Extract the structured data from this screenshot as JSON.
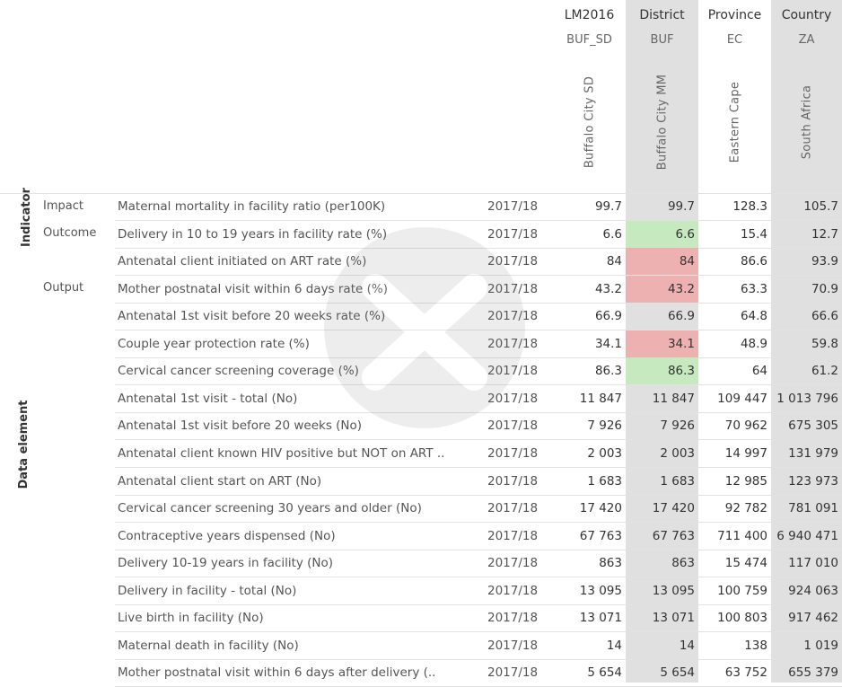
{
  "columns": [
    {
      "level1": "LM2016",
      "level2": "BUF_SD",
      "name": "Buffalo City SD"
    },
    {
      "level1": "District",
      "level2": "BUF",
      "name": "Buffalo City MM"
    },
    {
      "level1": "Province",
      "level2": "EC",
      "name": "Eastern Cape"
    },
    {
      "level1": "Country",
      "level2": "ZA",
      "name": "South Africa"
    }
  ],
  "groups": {
    "indicator": "Indicator",
    "data_element": "Data element"
  },
  "categories": {
    "impact": "Impact",
    "outcome": "Outcome",
    "output": "Output"
  },
  "colors": {
    "green": "#c6e9bf",
    "red": "#eeb1b1",
    "shaded_column": "#e0e0e0"
  },
  "rows": [
    {
      "label": "Maternal mortality in facility ratio (per100K)",
      "period": "2017/18",
      "values": [
        "99.7",
        "99.7",
        "128.3",
        "105.7"
      ]
    },
    {
      "label": "Delivery in 10 to 19 years in facility rate (%)",
      "period": "2017/18",
      "values": [
        "6.6",
        "6.6",
        "15.4",
        "12.7"
      ],
      "district_status": "green"
    },
    {
      "label": "Antenatal client initiated on ART rate (%)",
      "period": "2017/18",
      "values": [
        "84",
        "84",
        "86.6",
        "93.9"
      ],
      "district_status": "red"
    },
    {
      "label": "Mother postnatal visit within 6 days rate (%)",
      "period": "2017/18",
      "values": [
        "43.2",
        "43.2",
        "63.3",
        "70.9"
      ],
      "district_status": "red"
    },
    {
      "label": "Antenatal 1st visit before 20 weeks rate (%)",
      "period": "2017/18",
      "values": [
        "66.9",
        "66.9",
        "64.8",
        "66.6"
      ]
    },
    {
      "label": "Couple year protection rate (%)",
      "period": "2017/18",
      "values": [
        "34.1",
        "34.1",
        "48.9",
        "59.8"
      ],
      "district_status": "red"
    },
    {
      "label": "Cervical cancer screening coverage (%)",
      "period": "2017/18",
      "values": [
        "86.3",
        "86.3",
        "64",
        "61.2"
      ],
      "district_status": "green"
    },
    {
      "label": "Antenatal 1st visit - total (No)",
      "period": "2017/18",
      "values": [
        "11 847",
        "11 847",
        "109 447",
        "1 013 796"
      ]
    },
    {
      "label": "Antenatal 1st visit before 20 weeks (No)",
      "period": "2017/18",
      "values": [
        "7 926",
        "7 926",
        "70 962",
        "675 305"
      ]
    },
    {
      "label": "Antenatal client known HIV positive but NOT on ART ..",
      "period": "2017/18",
      "values": [
        "2 003",
        "2 003",
        "14 997",
        "131 979"
      ]
    },
    {
      "label": "Antenatal client start on ART (No)",
      "period": "2017/18",
      "values": [
        "1 683",
        "1 683",
        "12 985",
        "123 973"
      ]
    },
    {
      "label": "Cervical cancer screening 30 years and older (No)",
      "period": "2017/18",
      "values": [
        "17 420",
        "17 420",
        "92 782",
        "781 091"
      ]
    },
    {
      "label": "Contraceptive years dispensed (No)",
      "period": "2017/18",
      "values": [
        "67 763",
        "67 763",
        "711 400",
        "6 940 471"
      ]
    },
    {
      "label": "Delivery 10-19 years in facility (No)",
      "period": "2017/18",
      "values": [
        "863",
        "863",
        "15 474",
        "117 010"
      ]
    },
    {
      "label": "Delivery in facility - total (No)",
      "period": "2017/18",
      "values": [
        "13 095",
        "13 095",
        "100 759",
        "924 063"
      ]
    },
    {
      "label": "Live birth in facility (No)",
      "period": "2017/18",
      "values": [
        "13 071",
        "13 071",
        "100 803",
        "917 462"
      ]
    },
    {
      "label": "Maternal death in facility (No)",
      "period": "2017/18",
      "values": [
        "14",
        "14",
        "138",
        "1 019"
      ]
    },
    {
      "label": "Mother postnatal visit within 6 days after delivery (..",
      "period": "2017/18",
      "values": [
        "5 654",
        "5 654",
        "63 752",
        "655 379"
      ]
    }
  ]
}
